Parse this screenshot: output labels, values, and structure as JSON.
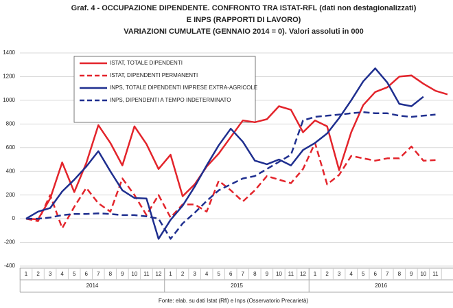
{
  "chart_data": {
    "type": "line",
    "title": [
      "Graf. 4 - OCCUPAZIONE DIPENDENTE.  CONFRONTO TRA ISTAT-RFL (dati non destagionalizzati)",
      "E INPS (RAPPORTI DI LAVORO)",
      "VARIAZIONI CUMULATE  (GENNAIO 2014 = 0). Valori assoluti in 000"
    ],
    "source": "Fonte: elab. su dati Istat (Rfl) e Inps (Osservatorio Precarietà)",
    "categories": [
      "1",
      "2",
      "3",
      "4",
      "5",
      "6",
      "7",
      "8",
      "9",
      "10",
      "11",
      "12",
      "1",
      "2",
      "3",
      "4",
      "5",
      "6",
      "7",
      "8",
      "9",
      "10",
      "11",
      "12",
      "1",
      "2",
      "3",
      "4",
      "5",
      "6",
      "7",
      "8",
      "9",
      "10",
      "11",
      null
    ],
    "groups": [
      "2014",
      "2015",
      "2016"
    ],
    "ylim": [
      -400,
      1400
    ],
    "yticks": [
      -400,
      -200,
      0,
      200,
      400,
      600,
      800,
      1000,
      1200,
      1400
    ],
    "grid": true,
    "series": [
      {
        "name": "ISTAT, TOTALE DIPENDENTI",
        "color": "#e3242b",
        "dash": false,
        "values": [
          0,
          -5,
          170,
          475,
          225,
          470,
          790,
          640,
          450,
          780,
          630,
          420,
          540,
          190,
          290,
          440,
          550,
          690,
          830,
          815,
          840,
          950,
          920,
          730,
          830,
          780,
          410,
          730,
          960,
          1070,
          1110,
          1200,
          1210,
          1140,
          1080,
          1050
        ]
      },
      {
        "name": "ISTAT, DIPENDENTI PERMANENTI",
        "color": "#e3242b",
        "dash": true,
        "values": [
          0,
          -20,
          200,
          -80,
          100,
          260,
          130,
          60,
          340,
          200,
          30,
          200,
          10,
          120,
          120,
          60,
          320,
          240,
          145,
          240,
          360,
          330,
          300,
          420,
          640,
          290,
          370,
          530,
          510,
          490,
          510,
          510,
          610,
          490,
          495,
          null
        ]
      },
      {
        "name": "INPS, TOTALE DIPENDENTI IMPRESE EXTRA-AGRICOLE",
        "color": "#1f2f8f",
        "dash": false,
        "values": [
          0,
          60,
          90,
          230,
          330,
          440,
          570,
          400,
          240,
          175,
          170,
          -170,
          -10,
          110,
          270,
          450,
          620,
          760,
          650,
          490,
          460,
          500,
          450,
          580,
          640,
          720,
          850,
          1000,
          1160,
          1270,
          1150,
          970,
          950,
          1030,
          null,
          null
        ]
      },
      {
        "name": "INPS, DIPENDENTI A TEMPO INDETERMINATO",
        "color": "#1f2f8f",
        "dash": true,
        "values": [
          0,
          0,
          10,
          30,
          40,
          40,
          45,
          40,
          30,
          30,
          20,
          0,
          -170,
          -40,
          50,
          150,
          240,
          290,
          340,
          360,
          420,
          480,
          540,
          830,
          860,
          870,
          880,
          890,
          900,
          890,
          890,
          870,
          860,
          870,
          880,
          null
        ]
      }
    ]
  }
}
